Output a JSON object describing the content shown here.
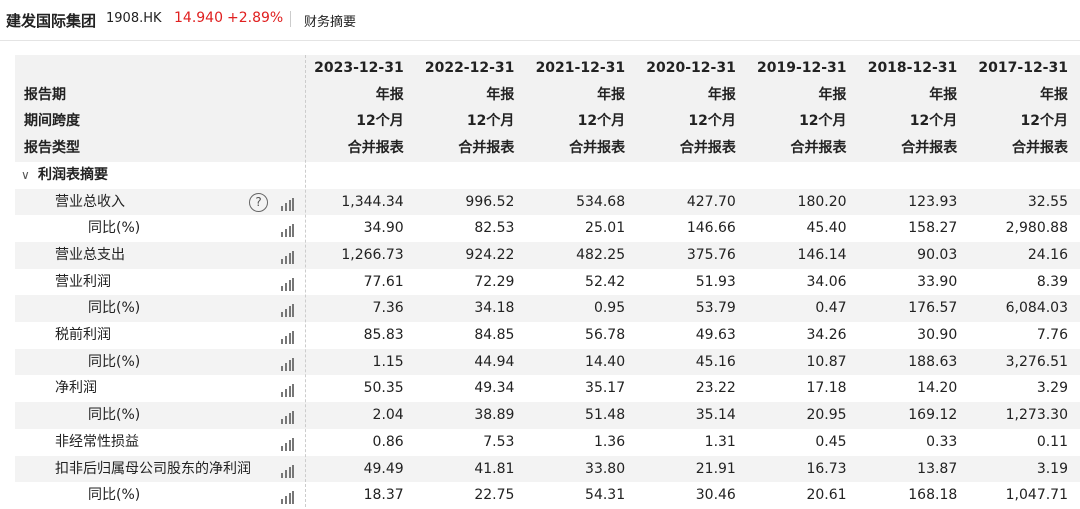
{
  "header": {
    "company": "建发国际集团",
    "code": "1908.HK",
    "price": "14.940",
    "change": "+2.89%",
    "tab": "财务摘要"
  },
  "table": {
    "columns": [
      "2023-12-31",
      "2022-12-31",
      "2021-12-31",
      "2020-12-31",
      "2019-12-31",
      "2018-12-31",
      "2017-12-31"
    ],
    "info_rows": [
      {
        "label": "报告期",
        "values": [
          "年报",
          "年报",
          "年报",
          "年报",
          "年报",
          "年报",
          "年报"
        ]
      },
      {
        "label": "期间跨度",
        "values": [
          "12个月",
          "12个月",
          "12个月",
          "12个月",
          "12个月",
          "12个月",
          "12个月"
        ]
      },
      {
        "label": "报告类型",
        "values": [
          "合并报表",
          "合并报表",
          "合并报表",
          "合并报表",
          "合并报表",
          "合并报表",
          "合并报表"
        ]
      }
    ],
    "section": "利润表摘要",
    "rows": [
      {
        "label": "营业总收入",
        "values": [
          "1,344.34",
          "996.52",
          "534.68",
          "427.70",
          "180.20",
          "123.93",
          "32.55"
        ],
        "children": [
          {
            "label": "同比(%)",
            "values": [
              "34.90",
              "82.53",
              "25.01",
              "146.66",
              "45.40",
              "158.27",
              "2,980.88"
            ]
          }
        ]
      },
      {
        "label": "营业总支出",
        "values": [
          "1,266.73",
          "924.22",
          "482.25",
          "375.76",
          "146.14",
          "90.03",
          "24.16"
        ]
      },
      {
        "label": "营业利润",
        "values": [
          "77.61",
          "72.29",
          "52.42",
          "51.93",
          "34.06",
          "33.90",
          "8.39"
        ],
        "children": [
          {
            "label": "同比(%)",
            "values": [
              "7.36",
              "34.18",
              "0.95",
              "53.79",
              "0.47",
              "176.57",
              "6,084.03"
            ]
          }
        ]
      },
      {
        "label": "税前利润",
        "values": [
          "85.83",
          "84.85",
          "56.78",
          "49.63",
          "34.26",
          "30.90",
          "7.76"
        ],
        "children": [
          {
            "label": "同比(%)",
            "values": [
              "1.15",
              "44.94",
              "14.40",
              "45.16",
              "10.87",
              "188.63",
              "3,276.51"
            ]
          }
        ]
      },
      {
        "label": "净利润",
        "values": [
          "50.35",
          "49.34",
          "35.17",
          "23.22",
          "17.18",
          "14.20",
          "3.29"
        ],
        "children": [
          {
            "label": "同比(%)",
            "values": [
              "2.04",
              "38.89",
              "51.48",
              "35.14",
              "20.95",
              "169.12",
              "1,273.30"
            ]
          }
        ]
      },
      {
        "label": "非经常性损益",
        "values": [
          "0.86",
          "7.53",
          "1.36",
          "1.31",
          "0.45",
          "0.33",
          "0.11"
        ]
      },
      {
        "label": "扣非后归属母公司股东的净利润",
        "values": [
          "49.49",
          "41.81",
          "33.80",
          "21.91",
          "16.73",
          "13.87",
          "3.19"
        ],
        "children": [
          {
            "label": "同比(%)",
            "values": [
              "18.37",
              "22.75",
              "54.31",
              "30.46",
              "20.61",
              "168.18",
              "1,047.71"
            ]
          }
        ]
      }
    ]
  }
}
